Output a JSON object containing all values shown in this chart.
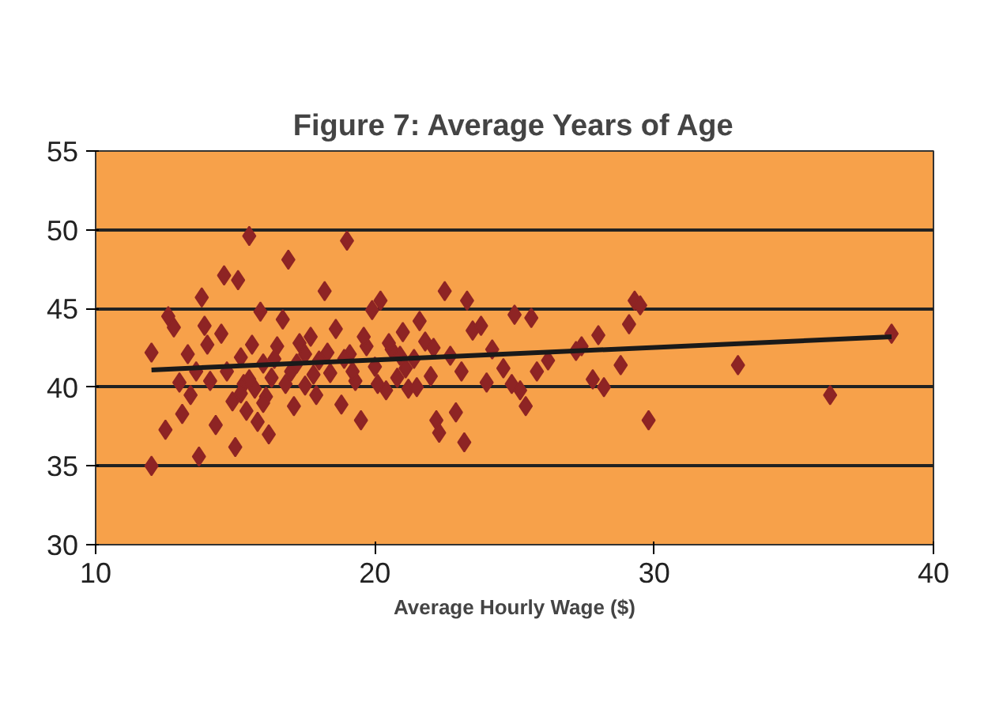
{
  "chart_data": {
    "type": "scatter",
    "title": "Figure 7: Average Years of Age",
    "xlabel": "Average Hourly Wage ($)",
    "xlim": [
      10,
      40
    ],
    "xticks": [
      10,
      20,
      30,
      40
    ],
    "ylim": [
      30,
      55
    ],
    "yticks": [
      30,
      35,
      40,
      45,
      50,
      55
    ],
    "grid": "y",
    "series": [
      {
        "marker": "diamond",
        "color": "#8e2424",
        "x": [
          12.0,
          12.0,
          12.5,
          12.6,
          12.8,
          13.0,
          13.1,
          13.3,
          13.4,
          13.6,
          13.7,
          13.8,
          13.9,
          14.0,
          14.1,
          14.3,
          14.5,
          14.6,
          14.7,
          14.9,
          15.0,
          15.1,
          15.2,
          15.3,
          15.4,
          15.5,
          15.6,
          15.7,
          15.8,
          15.9,
          16.0,
          16.1,
          16.2,
          16.3,
          16.5,
          16.7,
          16.9,
          17.0,
          17.1,
          17.3,
          17.5,
          17.7,
          17.9,
          18.0,
          18.2,
          18.4,
          18.6,
          18.8,
          19.0,
          19.1,
          19.3,
          19.5,
          19.7,
          19.9,
          20.0,
          20.2,
          20.4,
          20.6,
          20.8,
          21.0,
          21.2,
          21.4,
          21.6,
          21.8,
          22.0,
          22.2,
          22.3,
          22.5,
          22.7,
          22.9,
          23.1,
          23.2,
          23.3,
          23.5,
          23.8,
          24.0,
          24.2,
          24.6,
          24.9,
          25.0,
          25.2,
          25.4,
          25.6,
          25.8,
          26.2,
          27.2,
          27.4,
          27.8,
          28.0,
          28.2,
          28.8,
          29.1,
          29.3,
          29.5,
          29.8,
          33.0,
          36.3,
          38.5,
          15.5,
          16.0,
          16.4,
          17.2,
          17.8,
          18.3,
          19.2,
          20.1,
          20.5,
          21.1,
          21.5,
          22.1,
          16.8,
          18.9,
          19.6,
          20.9,
          15.2,
          17.5
        ],
        "values": [
          35.0,
          42.2,
          37.3,
          44.5,
          43.8,
          40.3,
          38.3,
          42.1,
          39.5,
          41.0,
          35.6,
          45.7,
          43.9,
          42.7,
          40.4,
          37.6,
          43.4,
          47.1,
          41.0,
          39.1,
          36.2,
          46.8,
          41.9,
          40.2,
          38.5,
          49.6,
          42.7,
          39.9,
          37.8,
          44.8,
          41.5,
          39.4,
          37.0,
          40.6,
          42.6,
          44.3,
          48.1,
          41.0,
          38.8,
          42.8,
          40.1,
          43.2,
          39.5,
          41.7,
          46.1,
          40.9,
          43.7,
          38.9,
          49.3,
          42.1,
          40.4,
          37.9,
          42.6,
          44.9,
          41.3,
          45.5,
          39.8,
          42.4,
          40.6,
          43.5,
          39.9,
          41.8,
          44.2,
          42.9,
          40.7,
          37.9,
          37.1,
          46.1,
          42.0,
          38.4,
          41.0,
          36.5,
          45.5,
          43.6,
          43.9,
          40.3,
          42.4,
          41.2,
          40.2,
          44.6,
          39.8,
          38.8,
          44.4,
          41.0,
          41.7,
          42.3,
          42.6,
          40.5,
          43.3,
          40.0,
          41.4,
          44.0,
          45.5,
          45.2,
          37.9,
          41.4,
          39.5,
          43.4,
          40.5,
          39.0,
          41.8,
          41.5,
          40.8,
          42.2,
          41.0,
          40.2,
          42.8,
          41.2,
          40.0,
          42.5,
          40.2,
          41.8,
          43.2,
          42.0,
          39.6,
          42.1
        ]
      },
      {
        "type": "line",
        "color": "#1a1a1a",
        "x": [
          12.0,
          38.5
        ],
        "values": [
          41.1,
          43.2
        ]
      }
    ]
  }
}
